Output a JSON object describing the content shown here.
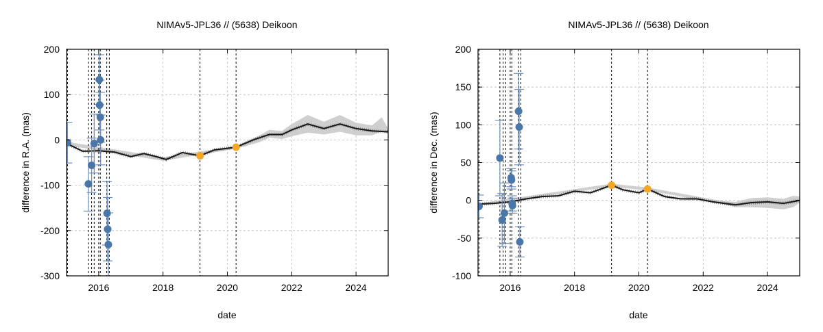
{
  "chart_data": [
    {
      "type": "scatter",
      "title": "NIMAv5-JPL36 // (5638) Deikoon",
      "xlabel": "date",
      "ylabel": "difference in R.A. (mas)",
      "xlim": [
        2015.0,
        2025.0
      ],
      "ylim": [
        -300,
        200
      ],
      "xticks": [
        2016,
        2018,
        2020,
        2022,
        2024
      ],
      "yticks": [
        -300,
        -200,
        -100,
        0,
        100,
        200
      ],
      "grid": true,
      "vlines": [
        2015.03,
        2015.68,
        2015.78,
        2015.86,
        2016.0,
        2016.05,
        2016.25,
        2016.33,
        2019.15,
        2020.27
      ],
      "series": [
        {
          "kind": "model-line",
          "x": [
            2015.0,
            2015.5,
            2016.0,
            2016.5,
            2017.0,
            2017.4,
            2017.8,
            2018.1,
            2018.6,
            2019.15,
            2019.6,
            2020.27,
            2020.8,
            2021.3,
            2021.7,
            2022.0,
            2022.5,
            2023.0,
            2023.5,
            2024.0,
            2024.5,
            2025.0
          ],
          "y": [
            -8,
            -25,
            -24,
            -27,
            -37,
            -30,
            -37,
            -43,
            -28,
            -35,
            -22,
            -16,
            0,
            12,
            12,
            22,
            35,
            25,
            35,
            25,
            20,
            18
          ]
        },
        {
          "kind": "uncertainty-band",
          "x": [
            2015.0,
            2018.0,
            2020.3,
            2021.0,
            2021.3,
            2021.7,
            2022.0,
            2022.5,
            2023.0,
            2023.5,
            2024.0,
            2024.5,
            2024.8,
            2025.0
          ],
          "y_lower": [
            -12,
            -46,
            -19,
            -5,
            5,
            2,
            8,
            16,
            12,
            18,
            10,
            10,
            18,
            14
          ],
          "y_upper": [
            -4,
            -38,
            -13,
            10,
            22,
            20,
            35,
            55,
            40,
            55,
            38,
            32,
            50,
            25
          ]
        },
        {
          "kind": "observations",
          "x": [
            2015.03,
            2015.68,
            2015.78,
            2015.86,
            2016.02,
            2016.03,
            2016.05,
            2016.06,
            2016.26,
            2016.28,
            2016.3
          ],
          "y": [
            -6,
            -97,
            -56,
            -8,
            133,
            77,
            50,
            0,
            -162,
            -197,
            -231
          ],
          "err": [
            45,
            60,
            60,
            65,
            55,
            55,
            55,
            55,
            70,
            70,
            70
          ]
        },
        {
          "kind": "highlighted",
          "x": [
            2019.15,
            2020.27
          ],
          "y": [
            -35,
            -16
          ]
        }
      ]
    },
    {
      "type": "scatter",
      "title": "NIMAv5-JPL36 // (5638) Deikoon",
      "xlabel": "date",
      "ylabel": "difference in Dec. (mas)",
      "xlim": [
        2015.0,
        2025.0
      ],
      "ylim": [
        -100,
        200
      ],
      "xticks": [
        2016,
        2018,
        2020,
        2022,
        2024
      ],
      "yticks": [
        -100,
        -50,
        0,
        50,
        100,
        150,
        200
      ],
      "grid": true,
      "vlines": [
        2015.03,
        2015.68,
        2015.78,
        2015.86,
        2016.0,
        2016.05,
        2016.25,
        2016.33,
        2019.15,
        2020.27
      ],
      "series": [
        {
          "kind": "model-line",
          "x": [
            2015.0,
            2015.5,
            2016.0,
            2016.5,
            2017.0,
            2017.5,
            2018.0,
            2018.5,
            2019.15,
            2019.5,
            2020.0,
            2020.27,
            2020.8,
            2021.3,
            2021.8,
            2022.3,
            2023.0,
            2023.5,
            2024.0,
            2024.5,
            2025.0
          ],
          "y": [
            -5,
            -4,
            -2,
            2,
            5,
            6,
            12,
            10,
            20,
            14,
            10,
            15,
            5,
            2,
            2,
            -2,
            -6,
            -3,
            -2,
            -4,
            0
          ]
        },
        {
          "kind": "uncertainty-band",
          "x": [
            2015.0,
            2019.15,
            2020.27,
            2022.6,
            2023.0,
            2023.5,
            2024.0,
            2024.5,
            2024.8,
            2025.0
          ],
          "y_lower": [
            -6,
            18,
            13,
            -5,
            -9,
            -9,
            -10,
            -12,
            -9,
            -3
          ],
          "y_upper": [
            -4,
            22,
            17,
            -1,
            -2,
            3,
            4,
            2,
            6,
            5
          ]
        },
        {
          "kind": "observations",
          "x": [
            2015.03,
            2015.68,
            2015.75,
            2015.82,
            2016.03,
            2016.04,
            2016.06,
            2016.07,
            2016.26,
            2016.28,
            2016.3
          ],
          "y": [
            -8,
            56,
            -26,
            -17,
            30,
            27,
            -4,
            -7,
            118,
            97,
            -55
          ],
          "err": [
            15,
            50,
            35,
            40,
            12,
            12,
            10,
            10,
            50,
            50,
            20
          ]
        },
        {
          "kind": "highlighted",
          "x": [
            2019.15,
            2020.27
          ],
          "y": [
            20,
            15
          ]
        }
      ]
    }
  ]
}
